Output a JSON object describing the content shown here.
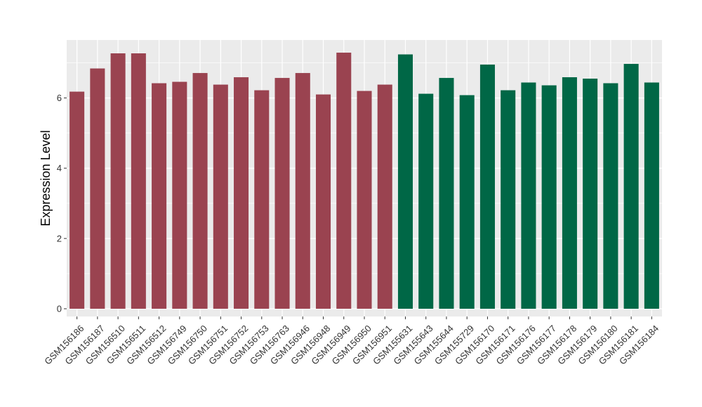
{
  "chart_data": {
    "type": "bar",
    "ylabel": "Expression Level",
    "xlabel": "",
    "ylim": [
      -0.22,
      7.65
    ],
    "yticks": [
      0,
      2,
      4,
      6
    ],
    "grid": true,
    "categories": [
      "GSM156186",
      "GSM156187",
      "GSM156510",
      "GSM156511",
      "GSM156512",
      "GSM156749",
      "GSM156750",
      "GSM156751",
      "GSM156752",
      "GSM156753",
      "GSM156763",
      "GSM156946",
      "GSM156948",
      "GSM156949",
      "GSM156950",
      "GSM156951",
      "GSM155631",
      "GSM155643",
      "GSM155644",
      "GSM155729",
      "GSM156170",
      "GSM156171",
      "GSM156176",
      "GSM156177",
      "GSM156178",
      "GSM156179",
      "GSM156180",
      "GSM156181",
      "GSM156184"
    ],
    "values": [
      6.18,
      6.84,
      7.27,
      7.27,
      6.42,
      6.46,
      6.71,
      6.38,
      6.59,
      6.22,
      6.57,
      6.71,
      6.1,
      7.29,
      6.2,
      6.38,
      7.24,
      6.12,
      6.57,
      6.08,
      6.95,
      6.22,
      6.44,
      6.36,
      6.59,
      6.55,
      6.42,
      6.97,
      6.44
    ],
    "groups": [
      0,
      0,
      0,
      0,
      0,
      0,
      0,
      0,
      0,
      0,
      0,
      0,
      0,
      0,
      0,
      0,
      1,
      1,
      1,
      1,
      1,
      1,
      1,
      1,
      1,
      1,
      1,
      1,
      1
    ],
    "group_colors": [
      "#9a4350",
      "#006746"
    ],
    "panel_color": "#ebebeb",
    "grid_color": "#ffffff"
  }
}
